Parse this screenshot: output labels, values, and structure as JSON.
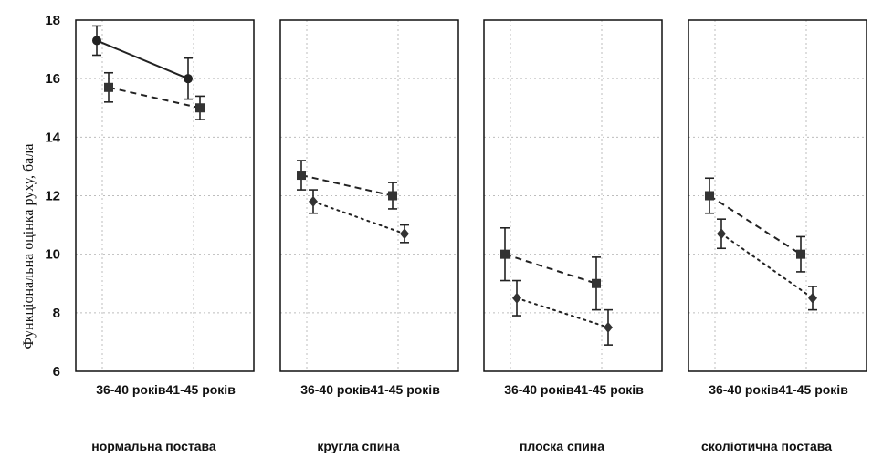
{
  "chart_data": {
    "type": "line",
    "ylabel": "Функціональна оцінка руху, бала",
    "ylim": [
      6,
      18
    ],
    "yticks": [
      6,
      8,
      10,
      12,
      14,
      16,
      18
    ],
    "grid": true,
    "panels": [
      {
        "label": "нормальна постава",
        "xticks": [
          "36-40 років",
          "41-45 років"
        ],
        "series": [
          {
            "style": "solid",
            "marker": "circle",
            "x": [
              "36-40 років",
              "41-45 років"
            ],
            "values": [
              17.3,
              16.0
            ],
            "err": [
              0.5,
              0.7
            ]
          },
          {
            "style": "dashed",
            "marker": "square",
            "x": [
              "36-40 років",
              "41-45 років"
            ],
            "values": [
              15.7,
              15.0
            ],
            "err": [
              0.5,
              0.4
            ]
          }
        ]
      },
      {
        "label": "кругла спина",
        "xticks": [
          "36-40 років",
          "41-45 років"
        ],
        "series": [
          {
            "style": "dashed",
            "marker": "square",
            "x": [
              "36-40 років",
              "41-45 років"
            ],
            "values": [
              12.7,
              12.0
            ],
            "err": [
              0.5,
              0.45
            ]
          },
          {
            "style": "dotted",
            "marker": "diamond",
            "x": [
              "36-40 років",
              "41-45 років"
            ],
            "values": [
              11.8,
              10.7
            ],
            "err": [
              0.4,
              0.3
            ]
          }
        ]
      },
      {
        "label": "плоска спина",
        "xticks": [
          "36-40 років",
          "41-45 років"
        ],
        "series": [
          {
            "style": "dashed",
            "marker": "square",
            "x": [
              "36-40 років",
              "41-45 років"
            ],
            "values": [
              10.0,
              9.0
            ],
            "err": [
              0.9,
              0.9
            ]
          },
          {
            "style": "dotted",
            "marker": "diamond",
            "x": [
              "36-40 років",
              "41-45 років"
            ],
            "values": [
              8.5,
              7.5
            ],
            "err": [
              0.6,
              0.6
            ]
          }
        ]
      },
      {
        "label": "сколіотична постава",
        "xticks": [
          "36-40 років",
          "41-45 років"
        ],
        "series": [
          {
            "style": "dashed",
            "marker": "square",
            "x": [
              "36-40 років",
              "41-45 років"
            ],
            "values": [
              12.0,
              10.0
            ],
            "err": [
              0.6,
              0.6
            ]
          },
          {
            "style": "dotted",
            "marker": "diamond",
            "x": [
              "36-40 років",
              "41-45 років"
            ],
            "values": [
              10.7,
              8.5
            ],
            "err": [
              0.5,
              0.4
            ]
          }
        ]
      }
    ]
  }
}
